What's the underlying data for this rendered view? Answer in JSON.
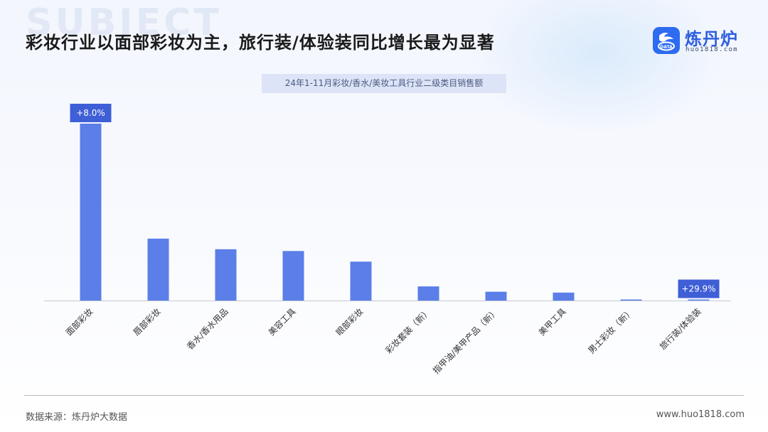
{
  "header": {
    "bg_word": "SUBJECT",
    "title": "彩妆行业以面部彩妆为主，旅行装/体验装同比增长最为显著"
  },
  "logo": {
    "icon": "dragon-data-icon",
    "icon_text": "DATA",
    "name": "炼丹炉",
    "url": "huo1818.com"
  },
  "colors": {
    "bar": "#5b7ee8",
    "label_bg": "#3f5fd6",
    "title": "#1a1a1a",
    "brand": "#2e6bf0"
  },
  "chart_data": {
    "type": "bar",
    "title": "24年1-11月彩妆/香水/美妆工具行业二级类目销售额",
    "categories": [
      "面部彩妆",
      "唇部彩妆",
      "香水/香水用品",
      "美容工具",
      "眼部彩妆",
      "彩妆套装（新）",
      "指甲油/美甲产品（新）",
      "美甲工具",
      "男士彩妆（新）",
      "旅行装/体验装"
    ],
    "values": [
      100,
      35,
      29,
      28,
      22,
      8,
      5,
      4.5,
      0.6,
      0.4
    ],
    "annotations": [
      {
        "category_index": 0,
        "text": "+8.0%"
      },
      {
        "category_index": 9,
        "text": "+29.9%"
      }
    ],
    "ylim": [
      0,
      100
    ],
    "y_axis_visible": false,
    "grid": false,
    "legend": "none"
  },
  "footer": {
    "source": "数据来源：炼丹炉大数据",
    "site": "www.huo1818.com"
  }
}
